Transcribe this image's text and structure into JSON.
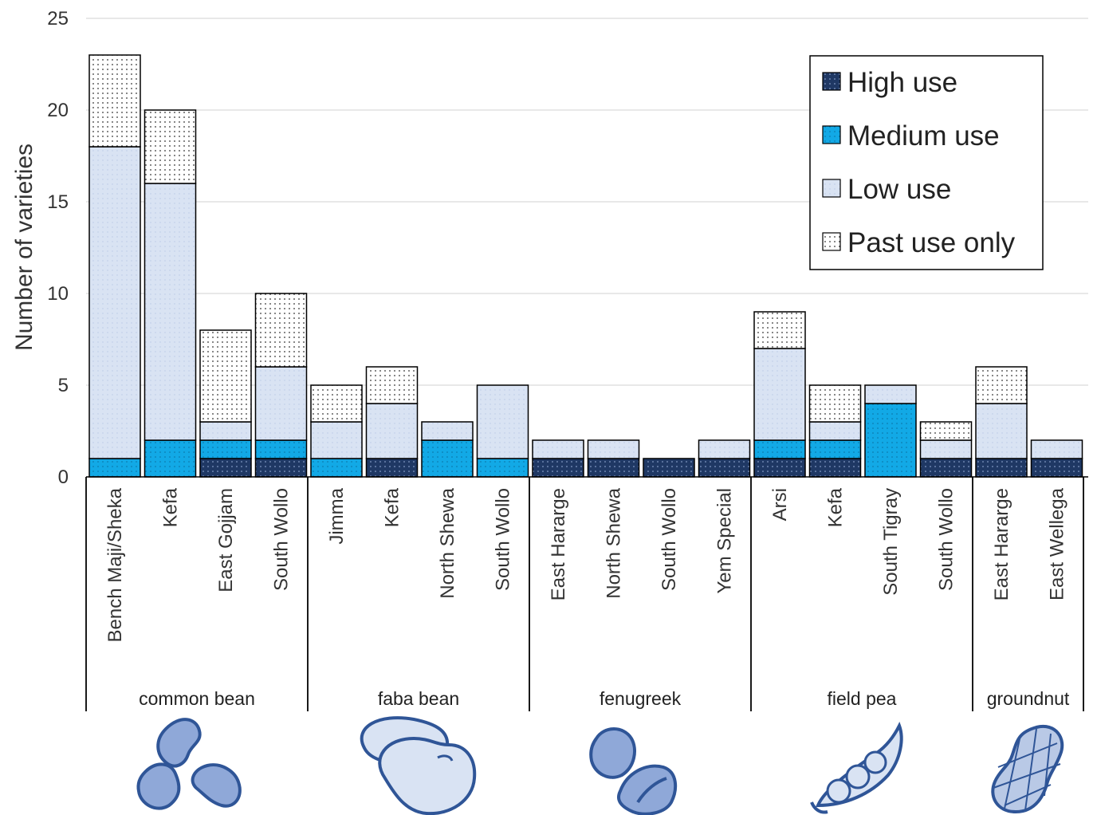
{
  "chart_data": {
    "type": "bar",
    "stacked": true,
    "ylabel": "Number of varieties",
    "xlabel": "",
    "ylim": [
      0,
      25
    ],
    "yticks": [
      0,
      5,
      10,
      15,
      20,
      25
    ],
    "grid": true,
    "legend_position": "top-right",
    "groups": [
      {
        "name": "common bean",
        "icon": "common-bean-icon",
        "categories": [
          "Bench Maji/Sheka",
          "Kefa",
          "East Gojjam",
          "South Wollo"
        ]
      },
      {
        "name": "faba bean",
        "icon": "faba-bean-icon",
        "categories": [
          "Jimma",
          "Kefa",
          "North Shewa",
          "South Wollo"
        ]
      },
      {
        "name": "fenugreek",
        "icon": "fenugreek-icon",
        "categories": [
          "East Hararge",
          "North Shewa",
          "South Wollo",
          "Yem Special"
        ]
      },
      {
        "name": "field pea",
        "icon": "field-pea-icon",
        "categories": [
          "Arsi",
          "Kefa",
          "South Tigray",
          "South Wollo"
        ]
      },
      {
        "name": "groundnut",
        "icon": "groundnut-icon",
        "categories": [
          "East Hararge",
          "East Wellega"
        ]
      }
    ],
    "series": [
      {
        "name": "High use",
        "color": "#1f3864",
        "pattern": "dots-light",
        "values": [
          0,
          0,
          1,
          1,
          0,
          1,
          0,
          0,
          1,
          1,
          1,
          1,
          1,
          1,
          0,
          1,
          1,
          1
        ]
      },
      {
        "name": "Medium use",
        "color": "#12a9e6",
        "pattern": "dots-dark",
        "values": [
          1,
          2,
          1,
          1,
          1,
          0,
          2,
          1,
          0,
          0,
          0,
          0,
          1,
          1,
          4,
          0,
          0,
          0
        ]
      },
      {
        "name": "Low use",
        "color": "#d9e3f3",
        "pattern": "dots-faint",
        "values": [
          17,
          14,
          1,
          4,
          2,
          3,
          1,
          4,
          1,
          1,
          0,
          1,
          5,
          1,
          1,
          1,
          3,
          1
        ]
      },
      {
        "name": "Past use only",
        "color": "#ffffff",
        "pattern": "dots-black",
        "values": [
          5,
          4,
          5,
          4,
          2,
          2,
          0,
          0,
          0,
          0,
          0,
          0,
          2,
          2,
          0,
          1,
          2,
          0
        ]
      }
    ]
  },
  "colors": {
    "grid": "#d9d9d9",
    "axis": "#000000",
    "icon_fill": "#8fa8d8",
    "icon_stroke": "#2f5597"
  }
}
